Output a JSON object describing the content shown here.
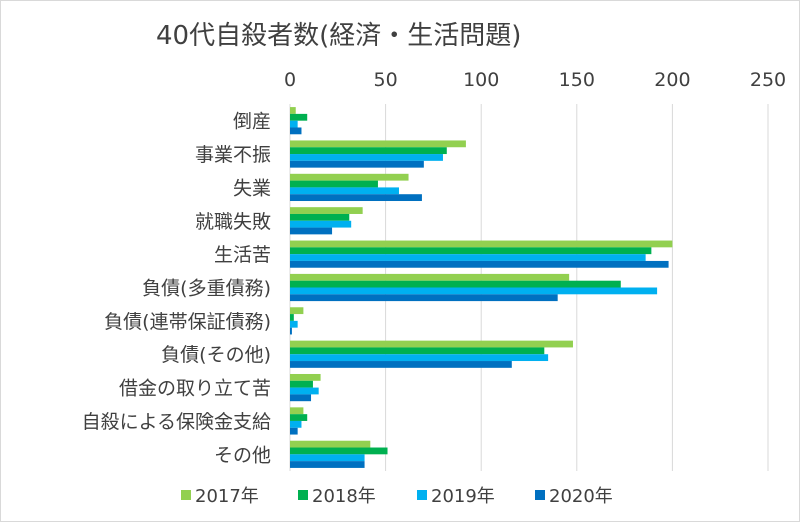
{
  "chart_data": {
    "type": "bar",
    "orientation": "horizontal",
    "title": "40代自殺者数(経済・生活問題)",
    "xlabel": "",
    "ylabel": "",
    "xlim": [
      0,
      250
    ],
    "ticks": [
      0,
      50,
      100,
      150,
      200,
      250
    ],
    "axis_position": "top",
    "grid": true,
    "legend_position": "bottom",
    "categories": [
      "倒産",
      "事業不振",
      "失業",
      "就職失敗",
      "生活苦",
      "負債(多重債務)",
      "負債(連帯保証債務)",
      "負債(その他)",
      "借金の取り立て苦",
      "自殺による保険金支給",
      "その他"
    ],
    "series": [
      {
        "name": "2017年",
        "color": "#92d050",
        "values": [
          3,
          92,
          62,
          38,
          200,
          146,
          7,
          148,
          16,
          7,
          42
        ]
      },
      {
        "name": "2018年",
        "color": "#00b050",
        "values": [
          9,
          82,
          46,
          31,
          189,
          173,
          2,
          133,
          12,
          9,
          51
        ]
      },
      {
        "name": "2019年",
        "color": "#00b0f0",
        "values": [
          4,
          80,
          57,
          32,
          186,
          192,
          4,
          135,
          15,
          6,
          39
        ]
      },
      {
        "name": "2020年",
        "color": "#0070c0",
        "values": [
          6,
          70,
          69,
          22,
          198,
          140,
          1,
          116,
          11,
          4,
          39
        ]
      }
    ]
  }
}
